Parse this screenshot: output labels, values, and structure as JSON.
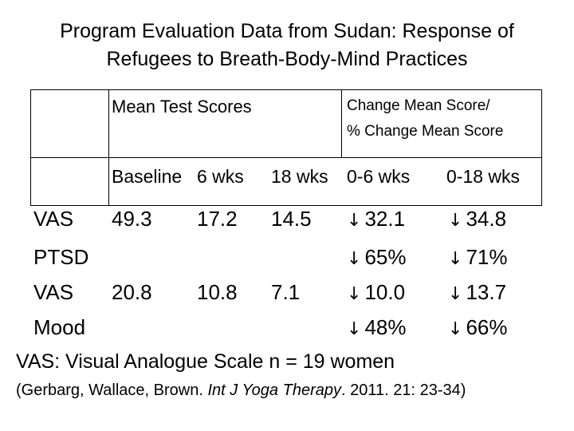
{
  "title": {
    "line1": "Program Evaluation Data from Sudan: Response of",
    "line2": "Refugees to Breath-Body-Mind Practices"
  },
  "table": {
    "group_header_1": "Mean Test Scores",
    "group_header_2_line1": "Change Mean Score/",
    "group_header_2_line2": "% Change Mean Score",
    "columns": [
      "Baseline",
      "6 wks",
      "18 wks",
      "0-6 wks",
      "0-18 wks"
    ],
    "rows": [
      {
        "label_line1": "VAS",
        "label_line2": "PTSD",
        "baseline": "49.3",
        "wk6": "17.2",
        "wk18": "14.5",
        "change_0_6": "32.1",
        "pct_0_6": "65%",
        "change_0_18": "34.8",
        "pct_0_18": "71%"
      },
      {
        "label_line1": "VAS",
        "label_line2": "Mood",
        "baseline": "20.8",
        "wk6": "10.8",
        "wk18": "7.1",
        "change_0_6": "10.0",
        "pct_0_6": "48%",
        "change_0_18": "13.7",
        "pct_0_18": "66%"
      }
    ],
    "arrow_glyph": "↓"
  },
  "footnote": "VAS: Visual Analogue Scale n = 19 women",
  "citation": {
    "prefix": "(Gerbarg, Wallace, Brown. ",
    "journal": "Int J Yoga Therapy",
    "suffix": ". 2011. 21: 23-34)"
  }
}
